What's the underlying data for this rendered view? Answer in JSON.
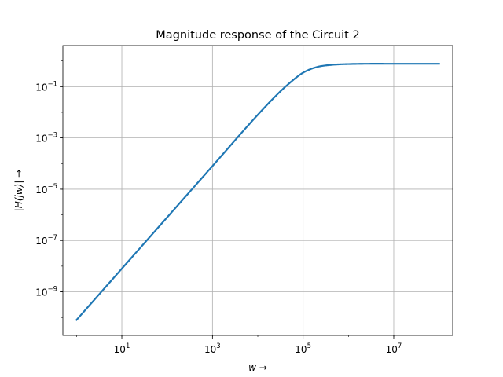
{
  "chart_data": {
    "type": "line",
    "title": "Magnitude response of the Circuit 2",
    "xlabel_base": "w",
    "xlabel_arrow": "→",
    "ylabel_text": "|H(jw)|",
    "ylabel_arrow": "→",
    "xscale": "log",
    "yscale": "log",
    "xlim": [
      0.5,
      200000000
    ],
    "ylim": [
      2e-11,
      4
    ],
    "grid": true,
    "x_ticks": [
      {
        "base": "10",
        "exp": "1",
        "value": 10
      },
      {
        "base": "10",
        "exp": "3",
        "value": 1000
      },
      {
        "base": "10",
        "exp": "5",
        "value": 100000
      },
      {
        "base": "10",
        "exp": "7",
        "value": 10000000
      }
    ],
    "y_ticks": [
      {
        "base": "10",
        "exp": "−1",
        "value": 0.1
      },
      {
        "base": "10",
        "exp": "−3",
        "value": 0.001
      },
      {
        "base": "10",
        "exp": "−5",
        "value": 1e-05
      },
      {
        "base": "10",
        "exp": "−7",
        "value": 1e-07
      },
      {
        "base": "10",
        "exp": "−9",
        "value": 1e-09
      }
    ],
    "series": [
      {
        "color": "#1f77b4",
        "x": [
          1,
          10,
          100,
          1000,
          10000,
          30000,
          60000,
          100000,
          200000,
          400000,
          1000000,
          10000000,
          100000000
        ],
        "y": [
          8e-11,
          8e-09,
          8e-07,
          8e-05,
          0.008,
          0.06,
          0.18,
          0.35,
          0.58,
          0.7,
          0.76,
          0.78,
          0.78
        ]
      }
    ]
  }
}
